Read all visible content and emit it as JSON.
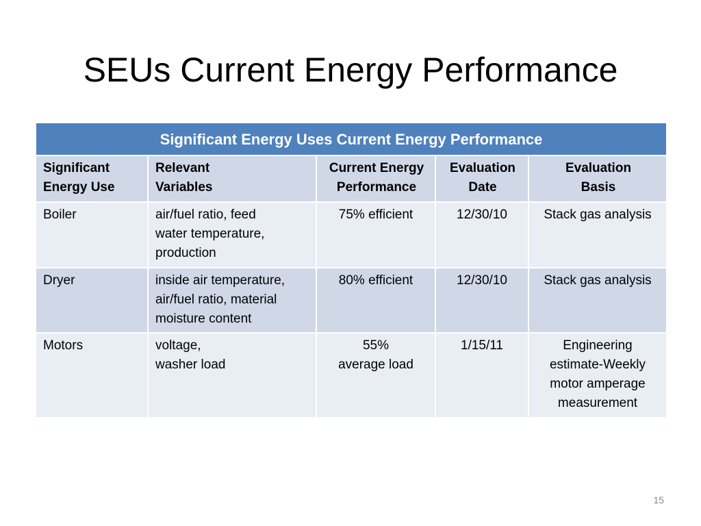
{
  "title": "SEUs Current Energy Performance",
  "table": {
    "caption": "Significant Energy Uses Current Energy Performance",
    "headers": [
      [
        "Significant",
        "Energy Use"
      ],
      [
        "Relevant",
        "Variables"
      ],
      [
        "Current Energy",
        "Performance"
      ],
      [
        "Evaluation",
        "Date"
      ],
      [
        "Evaluation",
        "Basis"
      ]
    ],
    "rows": [
      {
        "use": "Boiler",
        "variables": [
          "air/fuel ratio, feed",
          "water temperature,",
          "production"
        ],
        "performance": [
          "75% efficient"
        ],
        "date": "12/30/10",
        "basis": [
          "Stack gas analysis"
        ]
      },
      {
        "use": "Dryer",
        "variables": [
          "inside air temperature,",
          "air/fuel ratio, material",
          "moisture content"
        ],
        "performance": [
          "80% efficient"
        ],
        "date": "12/30/10",
        "basis": [
          "Stack gas analysis"
        ]
      },
      {
        "use": "Motors",
        "variables": [
          "voltage,",
          "washer load"
        ],
        "performance": [
          "55%",
          "average load"
        ],
        "date": "1/15/11",
        "basis": [
          "Engineering",
          "estimate-Weekly",
          "motor amperage",
          "measurement"
        ]
      }
    ]
  },
  "page_number": "15",
  "colors": {
    "caption_background": "#4f81bd",
    "header_background": "#d0d8e8",
    "row_light": "#e9edf4",
    "row_dark": "#d0d8e8"
  }
}
